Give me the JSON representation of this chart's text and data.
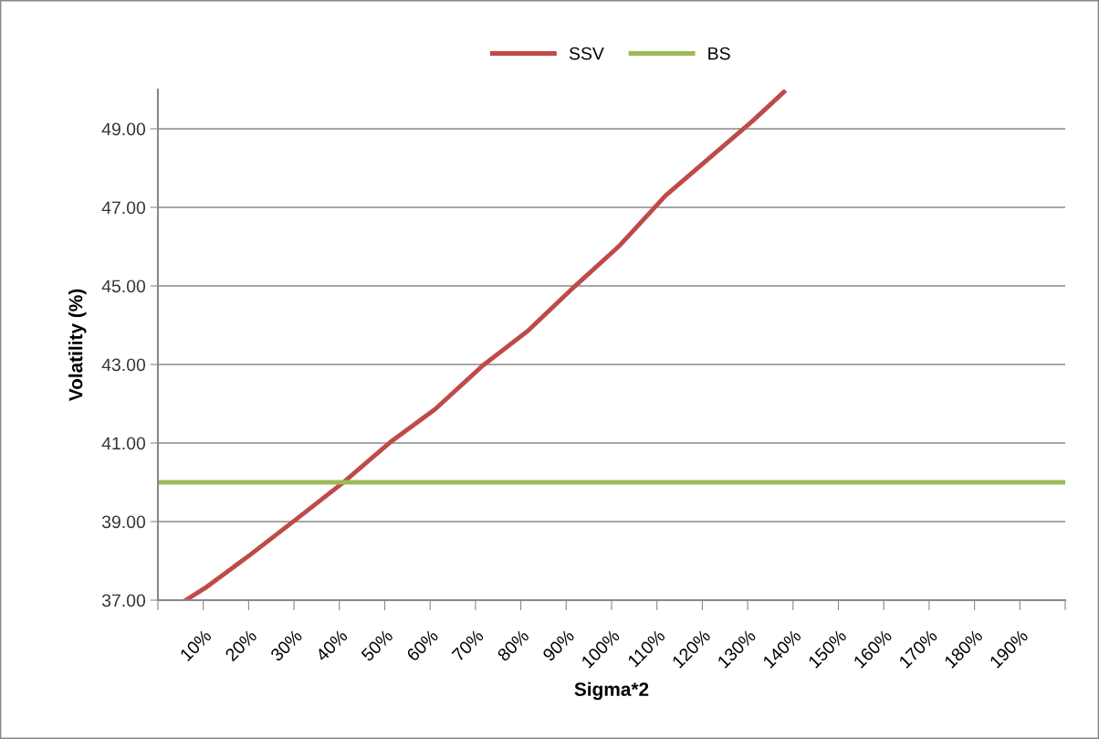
{
  "chart_data": {
    "type": "line",
    "xlabel": "Sigma*2",
    "ylabel": "Volatility (%)",
    "xlim": [
      0,
      200
    ],
    "xticks": [
      {
        "value": 0,
        "label": null
      },
      {
        "value": 10,
        "label": "10%"
      },
      {
        "value": 20,
        "label": "20%"
      },
      {
        "value": 30,
        "label": "30%"
      },
      {
        "value": 40,
        "label": "40%"
      },
      {
        "value": 50,
        "label": "50%"
      },
      {
        "value": 60,
        "label": "60%"
      },
      {
        "value": 70,
        "label": "70%"
      },
      {
        "value": 80,
        "label": "80%"
      },
      {
        "value": 90,
        "label": "90%"
      },
      {
        "value": 100,
        "label": "100%"
      },
      {
        "value": 110,
        "label": "110%"
      },
      {
        "value": 120,
        "label": "120%"
      },
      {
        "value": 130,
        "label": "130%"
      },
      {
        "value": 140,
        "label": "140%"
      },
      {
        "value": 150,
        "label": "150%"
      },
      {
        "value": 160,
        "label": "160%"
      },
      {
        "value": 170,
        "label": "170%"
      },
      {
        "value": 180,
        "label": "180%"
      },
      {
        "value": 190,
        "label": "190%"
      },
      {
        "value": 200,
        "label": null
      }
    ],
    "ylim": [
      37,
      50
    ],
    "yticks": [
      {
        "value": 37,
        "label": "37.00"
      },
      {
        "value": 39,
        "label": "39.00"
      },
      {
        "value": 41,
        "label": "41.00"
      },
      {
        "value": 43,
        "label": "43.00"
      },
      {
        "value": 45,
        "label": "45.00"
      },
      {
        "value": 47,
        "label": "47.00"
      },
      {
        "value": 49,
        "label": "49.00"
      }
    ],
    "grid": "y",
    "legend": "top",
    "marker": "none",
    "line_style": "solid",
    "series": [
      {
        "name": "SSV",
        "color": "#be4b48",
        "x": [
          6.3,
          10.4,
          20.4,
          30.5,
          41.0,
          51.1,
          61.1,
          71.6,
          81.7,
          91.8,
          101.8,
          111.9,
          122.0,
          131.1,
          138.0
        ],
        "values": [
          37.01,
          37.31,
          38.16,
          39.06,
          40.01,
          41.01,
          41.86,
          42.97,
          43.87,
          44.98,
          46.03,
          47.3,
          48.3,
          49.2,
          49.94
        ]
      },
      {
        "name": "BS",
        "color": "#9bbb59",
        "x": [
          0,
          200
        ],
        "values": [
          40,
          40
        ]
      }
    ]
  }
}
